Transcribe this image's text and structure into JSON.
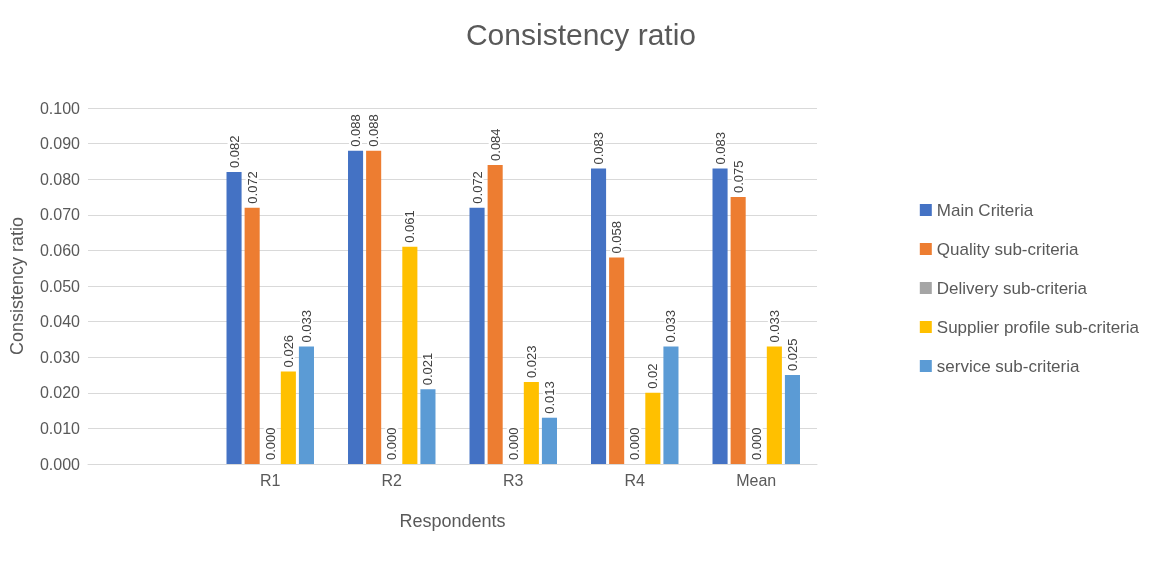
{
  "chart_data": {
    "type": "bar",
    "title": "Consistency ratio",
    "xlabel": "Respondents",
    "ylabel": "Consistency ratio",
    "categories": [
      null,
      "R1",
      "R2",
      "R3",
      "R4",
      "Mean"
    ],
    "series": [
      {
        "name": "Main Criteria",
        "color": "#4472c4",
        "values": [
          null,
          0.082,
          0.088,
          0.072,
          0.083,
          0.083
        ],
        "value_labels": [
          null,
          "0.082",
          "0.088",
          "0.072",
          "0.083",
          "0.083"
        ]
      },
      {
        "name": "Quality sub-criteria",
        "color": "#ed7d31",
        "values": [
          null,
          0.072,
          0.088,
          0.084,
          0.058,
          0.075
        ],
        "value_labels": [
          null,
          "0.072",
          "0.088",
          "0.084",
          "0.058",
          "0.075"
        ]
      },
      {
        "name": "Delivery sub-criteria",
        "color": "#a5a5a5",
        "values": [
          null,
          0,
          0,
          0,
          0,
          0
        ],
        "value_labels": [
          null,
          "0.000",
          "0.000",
          "0.000",
          "0.000",
          "0.000"
        ]
      },
      {
        "name": "Supplier profile sub-criteria",
        "color": "#ffc000",
        "values": [
          null,
          0.026,
          0.061,
          0.023,
          0.02,
          0.033
        ],
        "value_labels": [
          null,
          "0.026",
          "0.061",
          "0.023",
          "0.02",
          "0.033"
        ]
      },
      {
        "name": "service sub-criteria",
        "color": "#5b9bd5",
        "values": [
          null,
          0.033,
          0.021,
          0.013,
          0.033,
          0.025
        ],
        "value_labels": [
          null,
          "0.033",
          "0.021",
          "0.013",
          "0.033",
          "0.025"
        ]
      }
    ],
    "ylim": [
      0,
      0.1
    ],
    "yticks": [
      {
        "value": 0,
        "label": "0.000"
      },
      {
        "value": 0.01,
        "label": "0.010"
      },
      {
        "value": 0.02,
        "label": "0.020"
      },
      {
        "value": 0.03,
        "label": "0.030"
      },
      {
        "value": 0.04,
        "label": "0.040"
      },
      {
        "value": 0.05,
        "label": "0.050"
      },
      {
        "value": 0.06,
        "label": "0.060"
      },
      {
        "value": 0.07,
        "label": "0.070"
      },
      {
        "value": 0.08,
        "label": "0.080"
      },
      {
        "value": 0.09,
        "label": "0.090"
      },
      {
        "value": 0.1,
        "label": "0.100"
      }
    ],
    "grid": "y",
    "legend": "right"
  }
}
